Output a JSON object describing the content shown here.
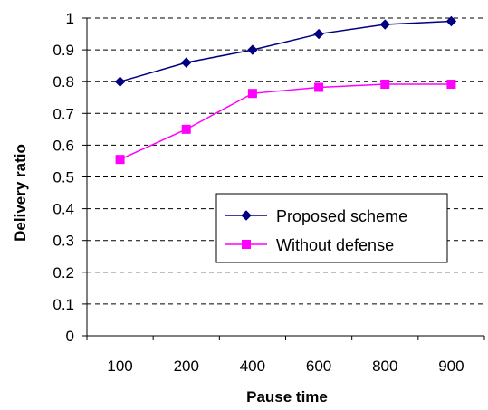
{
  "chart_data": {
    "type": "line",
    "title": "",
    "xlabel": "Pause time",
    "ylabel": "Delivery ratio",
    "categories": [
      "100",
      "200",
      "400",
      "600",
      "800",
      "900"
    ],
    "ylim": [
      0,
      1
    ],
    "yticks": [
      "0",
      "0.1",
      "0.2",
      "0.3",
      "0.4",
      "0.5",
      "0.6",
      "0.7",
      "0.8",
      "0.9",
      "1"
    ],
    "grid": true,
    "legend_position": "bottom-right",
    "series": [
      {
        "name": "Proposed scheme",
        "values": [
          0.8,
          0.86,
          0.9,
          0.95,
          0.98,
          0.99
        ],
        "color": "#000080",
        "marker": "diamond"
      },
      {
        "name": "Without defense",
        "values": [
          0.555,
          0.65,
          0.763,
          0.782,
          0.792,
          0.792
        ],
        "color": "#FF00FF",
        "marker": "square"
      }
    ]
  }
}
